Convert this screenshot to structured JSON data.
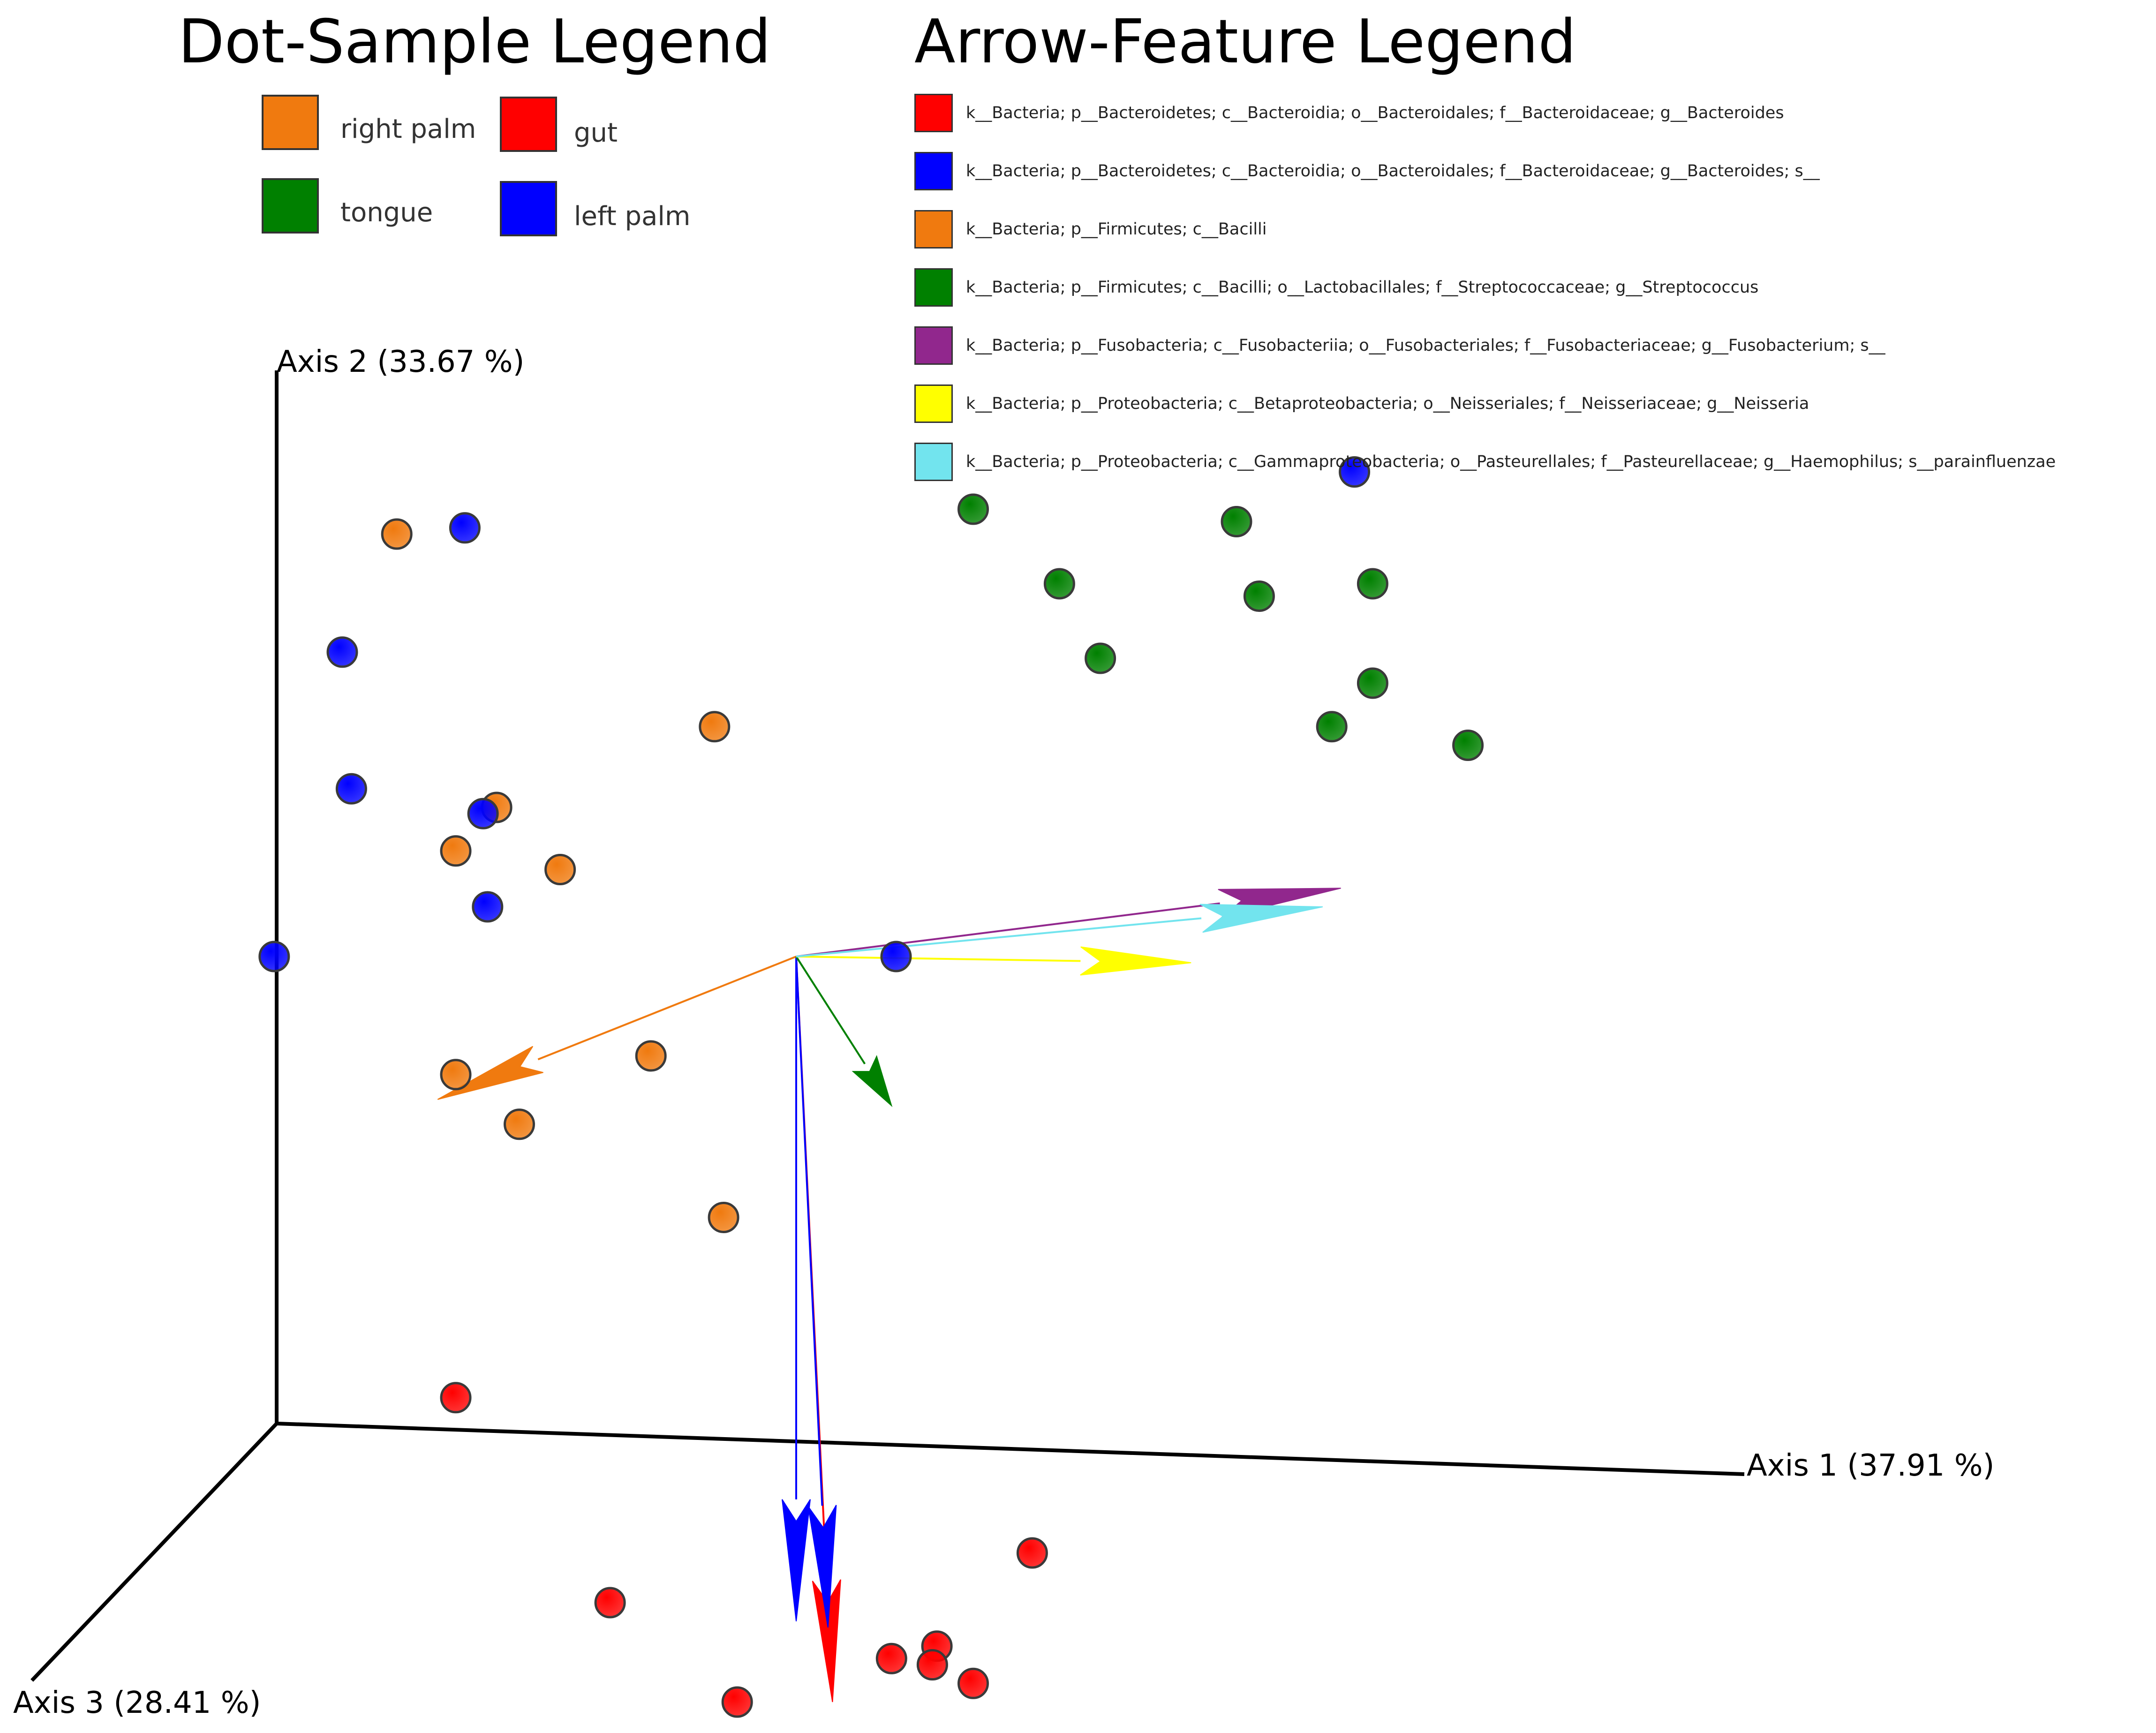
{
  "chart_data": {
    "type": "scatter",
    "axes": {
      "x_label": "Axis 1 (37.91 %)",
      "y_label": "Axis 2 (33.67 %)",
      "z_label": "Axis 3 (28.41 %)"
    },
    "sample_legend": {
      "title": "Dot-Sample Legend",
      "entries": [
        {
          "label": "right palm",
          "color": "#F07A0F"
        },
        {
          "label": "gut",
          "color": "#FF0000"
        },
        {
          "label": "tongue",
          "color": "#008000"
        },
        {
          "label": "left palm",
          "color": "#0000FF"
        }
      ]
    },
    "feature_legend": {
      "title": "Arrow-Feature Legend",
      "entries": [
        {
          "label": "k__Bacteria; p__Bacteroidetes; c__Bacteroidia; o__Bacteroidales; f__Bacteroidaceae; g__Bacteroides",
          "color": "#FF0000"
        },
        {
          "label": "k__Bacteria; p__Bacteroidetes; c__Bacteroidia; o__Bacteroidales; f__Bacteroidaceae; g__Bacteroides; s__",
          "color": "#0000FF"
        },
        {
          "label": "k__Bacteria; p__Firmicutes; c__Bacilli",
          "color": "#F07A0F"
        },
        {
          "label": "k__Bacteria; p__Firmicutes; c__Bacilli; o__Lactobacillales; f__Streptococcaceae; g__Streptococcus",
          "color": "#008000"
        },
        {
          "label": "k__Bacteria; p__Fusobacteria; c__Fusobacteriia; o__Fusobacteriales; f__Fusobacteriaceae; g__Fusobacterium; s__",
          "color": "#91278D"
        },
        {
          "label": "k__Bacteria; p__Proteobacteria; c__Betaproteobacteria; o__Neisseriales; f__Neisseriaceae; g__Neisseria",
          "color": "#FFFF00"
        },
        {
          "label": "k__Bacteria; p__Proteobacteria; c__Gammaproteobacteria; o__Pasteurellales; f__Pasteurellaceae; g__Haemophilus; s__parainfluenzae",
          "color": "#72E4EE"
        }
      ]
    },
    "samples": [
      {
        "group": "right palm",
        "x": -0.88,
        "y": 0.68
      },
      {
        "group": "right palm",
        "x": -0.18,
        "y": 0.37
      },
      {
        "group": "right palm",
        "x": -0.66,
        "y": 0.24
      },
      {
        "group": "right palm",
        "x": -0.75,
        "y": 0.17
      },
      {
        "group": "right palm",
        "x": -0.52,
        "y": 0.14
      },
      {
        "group": "right palm",
        "x": -0.75,
        "y": -0.19
      },
      {
        "group": "right palm",
        "x": -0.32,
        "y": -0.16
      },
      {
        "group": "right palm",
        "x": -0.61,
        "y": -0.27
      },
      {
        "group": "right palm",
        "x": -0.16,
        "y": -0.42
      },
      {
        "group": "left palm",
        "x": -0.73,
        "y": 0.69
      },
      {
        "group": "left palm",
        "x": -1.0,
        "y": 0.49
      },
      {
        "group": "left palm",
        "x": -0.98,
        "y": 0.27
      },
      {
        "group": "left palm",
        "x": -0.69,
        "y": 0.23
      },
      {
        "group": "left palm",
        "x": -0.68,
        "y": 0.08
      },
      {
        "group": "left palm",
        "x": -1.15,
        "y": -0.0
      },
      {
        "group": "left palm",
        "x": 0.22,
        "y": 0.0
      },
      {
        "group": "left palm",
        "x": 1.23,
        "y": 0.78
      },
      {
        "group": "tongue",
        "x": 0.39,
        "y": 0.72
      },
      {
        "group": "tongue",
        "x": 0.58,
        "y": 0.6
      },
      {
        "group": "tongue",
        "x": 0.67,
        "y": 0.48
      },
      {
        "group": "tongue",
        "x": 0.97,
        "y": 0.7
      },
      {
        "group": "tongue",
        "x": 1.02,
        "y": 0.58
      },
      {
        "group": "tongue",
        "x": 1.27,
        "y": 0.6
      },
      {
        "group": "tongue",
        "x": 1.27,
        "y": 0.44
      },
      {
        "group": "tongue",
        "x": 1.18,
        "y": 0.37
      },
      {
        "group": "tongue",
        "x": 1.48,
        "y": 0.34
      },
      {
        "group": "gut",
        "x": -0.75,
        "y": -0.71
      },
      {
        "group": "gut",
        "x": 0.52,
        "y": -0.96
      },
      {
        "group": "gut",
        "x": -0.41,
        "y": -1.04
      },
      {
        "group": "gut",
        "x": 0.21,
        "y": -1.13
      },
      {
        "group": "gut",
        "x": 0.31,
        "y": -1.11
      },
      {
        "group": "gut",
        "x": 0.3,
        "y": -1.14
      },
      {
        "group": "gut",
        "x": 0.39,
        "y": -1.17
      },
      {
        "group": "gut",
        "x": -0.13,
        "y": -1.2
      }
    ],
    "arrows": [
      {
        "feature": "k__Bacteria; p__Bacteroidetes; c__Bacteroidia; o__Bacteroidales; f__Bacteroidaceae; g__Bacteroides",
        "x": 0.08,
        "y": -1.2
      },
      {
        "feature": "k__Bacteria; p__Bacteroidetes; c__Bacteroidia; o__Bacteroidales; f__Bacteroidaceae; g__Bacteroides; s__",
        "x": 0.07,
        "y": -1.08
      },
      {
        "feature": "k__Bacteria; p__Bacteroidetes; c__Bacteroidia; o__Bacteroidales; f__Bacteroidaceae; g__Bacteroides; s__",
        "x": 0.0,
        "y": -1.07
      },
      {
        "feature": "k__Bacteria; p__Firmicutes; c__Bacilli",
        "x": -0.79,
        "y": -0.23
      },
      {
        "feature": "k__Bacteria; p__Firmicutes; c__Bacilli; o__Lactobacillales; f__Streptococcaceae; g__Streptococcus",
        "x": 0.21,
        "y": -0.24
      },
      {
        "feature": "k__Bacteria; p__Fusobacteria; c__Fusobacteriia; o__Fusobacteriales; f__Fusobacteriaceae; g__Fusobacterium; s__",
        "x": 1.2,
        "y": 0.11
      },
      {
        "feature": "k__Bacteria; p__Proteobacteria; c__Betaproteobacteria; o__Neisseriales; f__Neisseriaceae; g__Neisseria",
        "x": 0.87,
        "y": -0.01
      },
      {
        "feature": "k__Bacteria; p__Proteobacteria; c__Gammaproteobacteria; o__Pasteurellales; f__Pasteurellaceae; g__Haemophilus; s__parainfluenzae",
        "x": 1.16,
        "y": 0.08
      }
    ]
  }
}
